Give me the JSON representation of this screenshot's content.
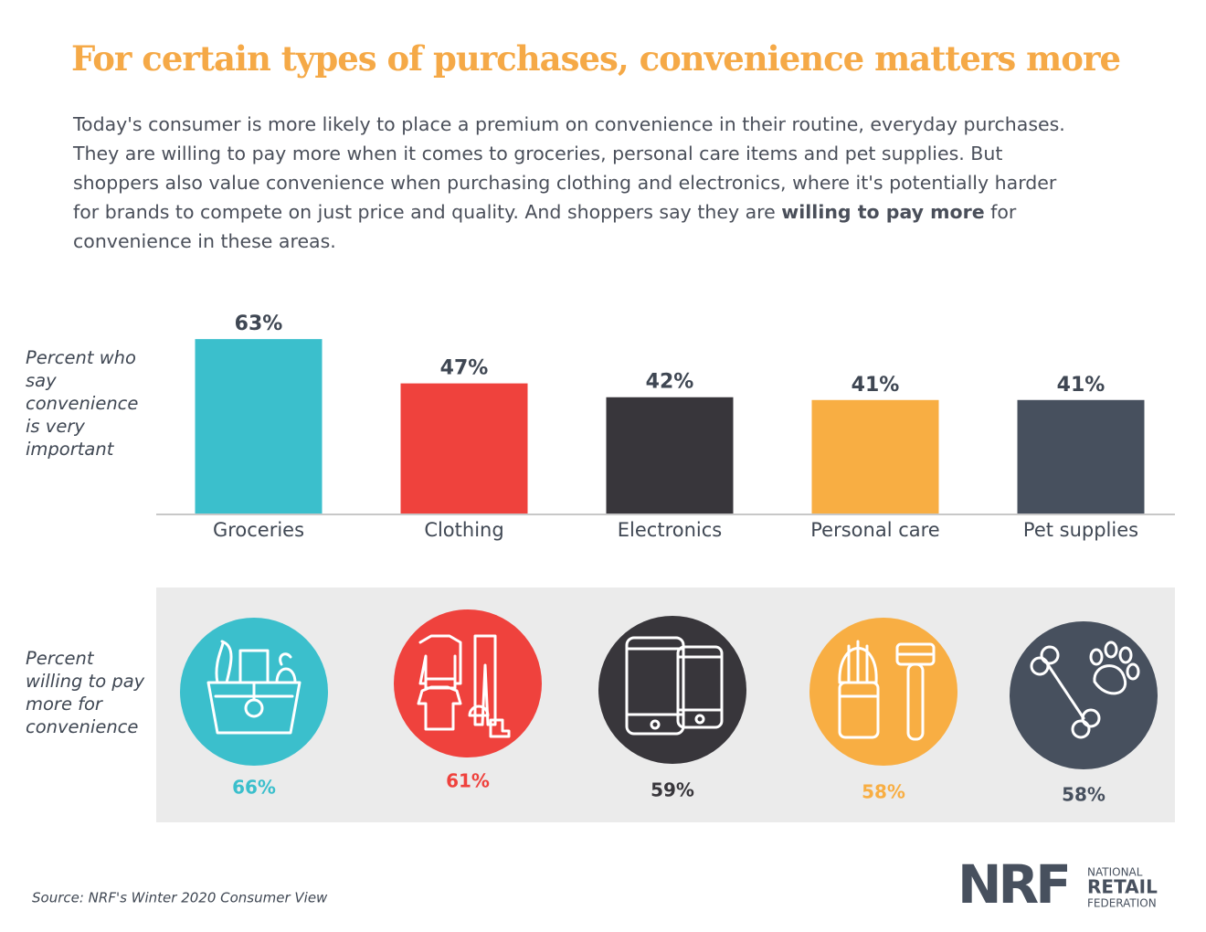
{
  "title": "For certain types of purchases, convenience matters more",
  "body": [
    "Today's consumer is more likely to place a premium on convenience in their routine, everyday purchases. They are willing to pay more when it comes to groceries, personal care items and pet supplies. But shoppers also value convenience when purchasing clothing and electronics, where it's potentially harder for brands to compete on just price and quality. And shoppers say they are ",
    "willing to pay more",
    " for convenience in these areas."
  ],
  "chart_data": {
    "type": "bar",
    "ylabel": "Percent who say convenience is very important",
    "categories": [
      "Groceries",
      "Clothing",
      "Electronics",
      "Personal care",
      "Pet supplies"
    ],
    "values": [
      63,
      47,
      42,
      41,
      41
    ],
    "value_labels": [
      "63%",
      "47%",
      "42%",
      "41%",
      "41%"
    ],
    "colors": [
      "#3bbfcc",
      "#ef423d",
      "#38363b",
      "#f8ae43",
      "#47505e"
    ],
    "ylim": [
      0,
      100
    ],
    "grid": false
  },
  "icon_panel": {
    "label": "Percent willing to pay more for convenience",
    "items": [
      {
        "label": "66%",
        "color": "#3bbfcc"
      },
      {
        "label": "61%",
        "color": "#ef423d"
      },
      {
        "label": "59%",
        "color": "#38363b"
      },
      {
        "label": "58%",
        "color": "#f8ae43"
      },
      {
        "label": "58%",
        "color": "#47505e"
      }
    ]
  },
  "source": "Source: NRF's Winter 2020 Consumer View",
  "logo": {
    "mark": "NRF",
    "lines": [
      "NATIONAL",
      "RETAIL",
      "FEDERATION"
    ]
  }
}
